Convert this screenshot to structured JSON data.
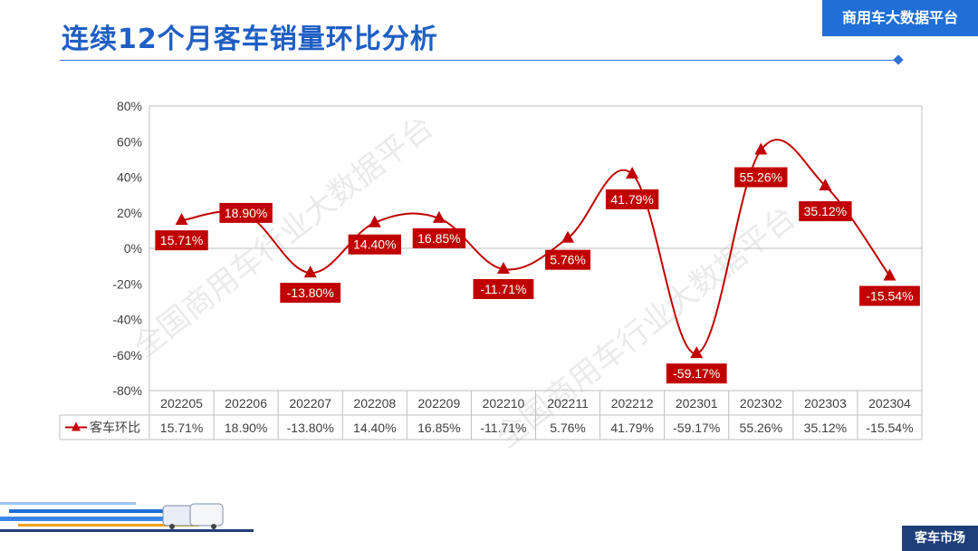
{
  "header": {
    "title": "连续12个月客车销量环比分析",
    "brand": "商用车大数据平台"
  },
  "footer": {
    "section_label": "客车市场"
  },
  "watermark": "全国商用车行业大数据平台",
  "colors": {
    "series": "#c00000",
    "accent": "#1f6fd6",
    "label_bg": "#c00000"
  },
  "chart_data": {
    "type": "line",
    "title": "",
    "xlabel": "",
    "ylabel": "",
    "ylim": [
      -80,
      80
    ],
    "ytick_step": 20,
    "yticks": [
      "80%",
      "60%",
      "40%",
      "20%",
      "0%",
      "-20%",
      "-40%",
      "-60%",
      "-80%"
    ],
    "grid": false,
    "legend": "table-left",
    "categories": [
      "202205",
      "202206",
      "202207",
      "202208",
      "202209",
      "202210",
      "202211",
      "202212",
      "202301",
      "202302",
      "202303",
      "202304"
    ],
    "series": [
      {
        "name": "客车环比",
        "marker": "triangle",
        "values": [
          15.71,
          18.9,
          -13.8,
          14.4,
          16.85,
          -11.71,
          5.76,
          41.79,
          -59.17,
          55.26,
          35.12,
          -15.54
        ],
        "labels": [
          "15.71%",
          "18.90%",
          "-13.80%",
          "14.40%",
          "16.85%",
          "-11.71%",
          "5.76%",
          "41.79%",
          "-59.17%",
          "55.26%",
          "35.12%",
          "-15.54%"
        ]
      }
    ]
  }
}
